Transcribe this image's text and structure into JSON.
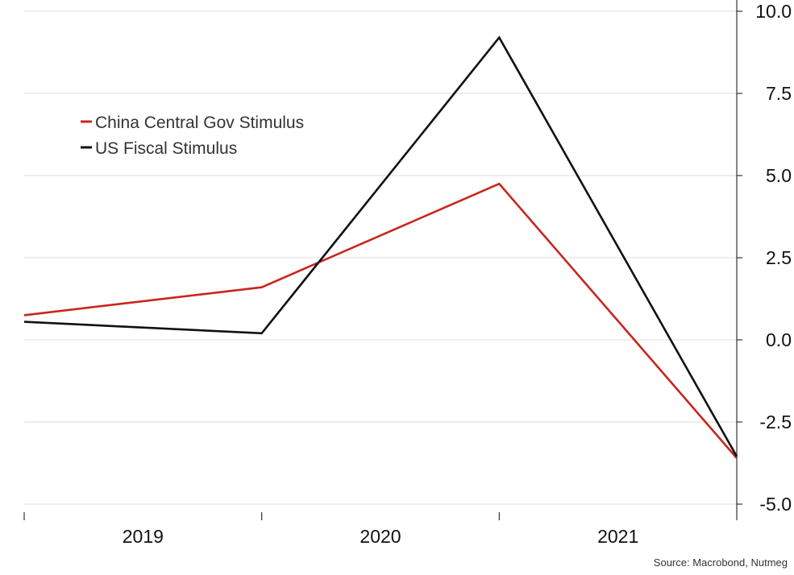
{
  "chart_data": {
    "type": "line",
    "title": "",
    "xlabel": "",
    "ylabel": "",
    "x": [
      0,
      1,
      2,
      3
    ],
    "x_periods": [
      "2019",
      "2020",
      "2021"
    ],
    "ylim": [
      -5.0,
      10.0
    ],
    "y_ticks": [
      "10.0",
      "7.5",
      "5.0",
      "2.5",
      "0.0",
      "-2.5",
      "-5.0"
    ],
    "y_axis_position": "right",
    "grid": true,
    "legend_position": "top-left",
    "series": [
      {
        "name": "China Central Gov Stimulus",
        "color": "#c8261e",
        "values": [
          0.75,
          1.6,
          4.75,
          -3.6
        ]
      },
      {
        "name": "US Fiscal Stimulus",
        "color": "#111111",
        "values": [
          0.55,
          0.2,
          9.2,
          -3.55
        ]
      }
    ],
    "source": "Source: Macrobond, Nutmeg"
  }
}
